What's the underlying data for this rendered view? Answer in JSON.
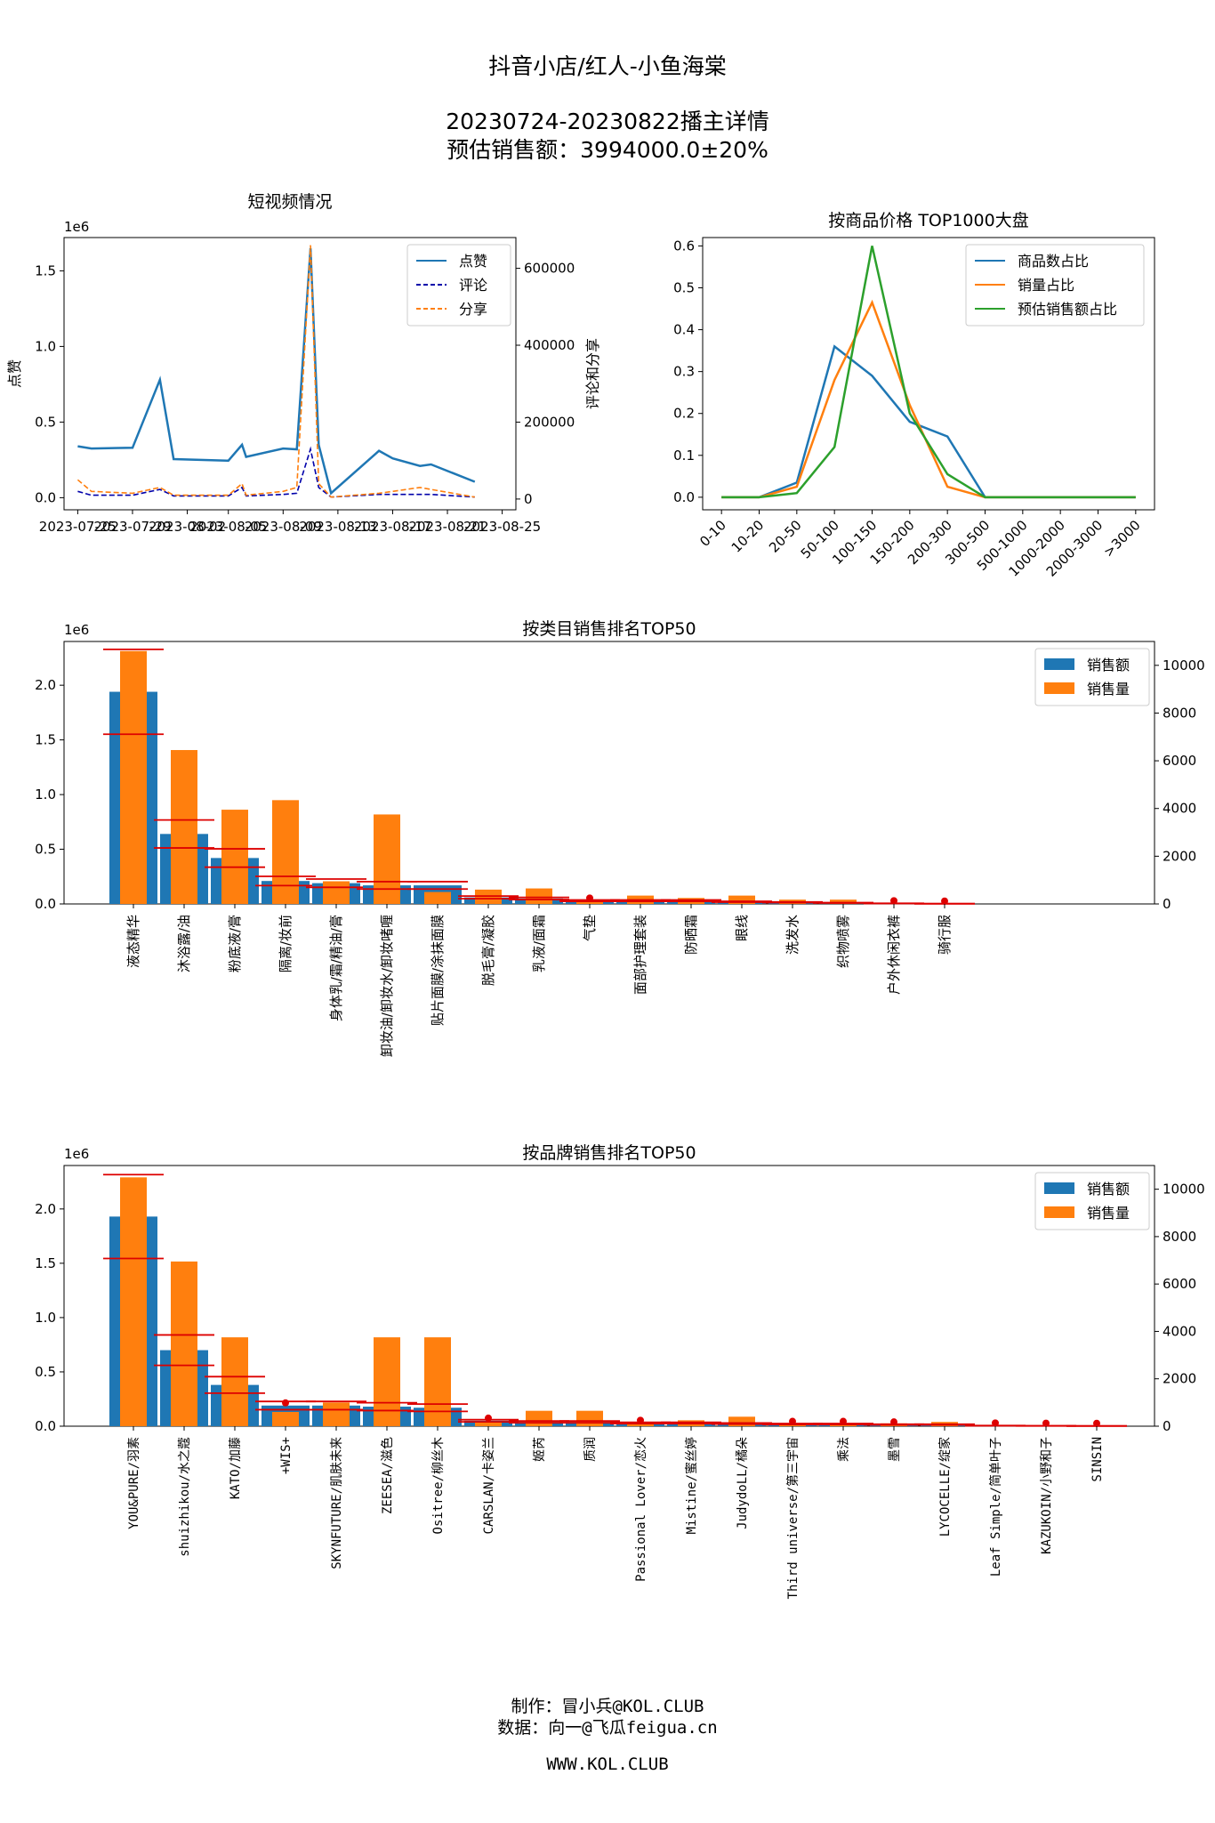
{
  "header": {
    "title": "抖音小店/红人-小鱼海棠",
    "subtitle": "20230724-20230822播主详情",
    "estimate": "预估销售额：3994000.0±20%"
  },
  "footer": {
    "author": "制作：冒小兵@KOL.CLUB",
    "source": "数据：向一@飞瓜feigua.cn",
    "site": "WWW.KOL.CLUB"
  },
  "colors": {
    "blue": "#1f77b4",
    "orange": "#ff7f0e",
    "green": "#2ca02c",
    "navy": "#0000aa",
    "red": "#dd0000"
  },
  "chart_data": [
    {
      "id": "video",
      "type": "line",
      "title": "短视频情况",
      "ylabel": "点赞",
      "y2label": "评论和分享",
      "offset_label": "1e6",
      "x_ticks": [
        "2023-07-25",
        "2023-07-29",
        "2023-08-02",
        "2023-08-05",
        "2023-08-09",
        "2023-08-13",
        "2023-08-17",
        "2023-08-21",
        "2023-08-25"
      ],
      "x_days": [
        1,
        5,
        9,
        12,
        16,
        20,
        24,
        28,
        32
      ],
      "ylim": [
        -80000,
        1720000
      ],
      "yticks": [
        0,
        500000,
        1000000,
        1500000
      ],
      "ytick_labels": [
        "0.0",
        "0.5",
        "1.0",
        "1.5"
      ],
      "y2lim": [
        -28000,
        680000
      ],
      "y2ticks": [
        0,
        200000,
        400000,
        600000
      ],
      "y2tick_labels": [
        "0",
        "200000",
        "400000",
        "600000"
      ],
      "legend": [
        "点赞",
        "评论",
        "分享"
      ],
      "series": [
        {
          "name": "点赞",
          "axis": "left",
          "style": "solid",
          "color": "#1f77b4",
          "x": [
            1,
            2,
            5,
            7,
            8,
            12,
            13,
            13.3,
            16,
            17,
            18,
            18.6,
            19.5,
            23,
            24,
            26,
            26.8,
            30
          ],
          "y": [
            340000,
            325000,
            330000,
            780000,
            255000,
            245000,
            350000,
            270000,
            325000,
            320000,
            1650000,
            350000,
            30000,
            310000,
            260000,
            210000,
            220000,
            105000
          ]
        },
        {
          "name": "评论",
          "axis": "right",
          "style": "dashed",
          "color": "#0000aa",
          "x": [
            1,
            2,
            5,
            7,
            8,
            12,
            13,
            13.3,
            16,
            17,
            18,
            18.6,
            19.5,
            23,
            24,
            26,
            26.8,
            30
          ],
          "y": [
            20000,
            10000,
            10000,
            25000,
            8000,
            8000,
            30000,
            8000,
            12000,
            15000,
            130000,
            30000,
            5000,
            12000,
            12000,
            12000,
            12000,
            5000
          ]
        },
        {
          "name": "分享",
          "axis": "right",
          "style": "dashed",
          "color": "#ff7f0e",
          "x": [
            1,
            2,
            5,
            7,
            8,
            12,
            13,
            13.3,
            16,
            17,
            18,
            18.6,
            19.5,
            23,
            24,
            26,
            26.8,
            30
          ],
          "y": [
            50000,
            20000,
            15000,
            30000,
            10000,
            10000,
            40000,
            10000,
            20000,
            30000,
            660000,
            40000,
            5000,
            15000,
            20000,
            30000,
            25000,
            5000
          ]
        }
      ]
    },
    {
      "id": "price",
      "type": "line",
      "title": "按商品价格 TOP1000大盘",
      "categories": [
        "0-10",
        "10-20",
        "20-50",
        "50-100",
        "100-150",
        "150-200",
        "200-300",
        "300-500",
        "500-1000",
        "1000-2000",
        "2000-3000",
        ">3000"
      ],
      "ylim": [
        -0.03,
        0.62
      ],
      "yticks": [
        0,
        0.1,
        0.2,
        0.3,
        0.4,
        0.5,
        0.6
      ],
      "ytick_labels": [
        "0.0",
        "0.1",
        "0.2",
        "0.3",
        "0.4",
        "0.5",
        "0.6"
      ],
      "legend": [
        "商品数占比",
        "销量占比",
        "预估销售额占比"
      ],
      "series": [
        {
          "name": "商品数占比",
          "color": "#1f77b4",
          "values": [
            0,
            0,
            0.035,
            0.36,
            0.29,
            0.18,
            0.145,
            0,
            0,
            0,
            0,
            0
          ]
        },
        {
          "name": "销量占比",
          "color": "#ff7f0e",
          "values": [
            0,
            0,
            0.025,
            0.28,
            0.465,
            0.22,
            0.025,
            0,
            0,
            0,
            0,
            0
          ]
        },
        {
          "name": "预估销售额占比",
          "color": "#2ca02c",
          "values": [
            0,
            0,
            0.01,
            0.12,
            0.6,
            0.2,
            0.055,
            0,
            0,
            0,
            0,
            0
          ]
        }
      ]
    },
    {
      "id": "category",
      "type": "bar",
      "title": "按类目销售排名TOP50",
      "offset_label": "1e6",
      "legend": [
        "销售额",
        "销售量"
      ],
      "labels": [
        "液态精华",
        "沐浴露/油",
        "粉底液/膏",
        "隔离/妆前",
        "身体乳/霜/精油/膏",
        "卸妆油/卸妆水/卸妆啫喱",
        "贴片面膜/涂抹面膜",
        "脱毛膏/凝胶",
        "乳液/面霜",
        "气垫",
        "面部护理套装",
        "防晒霜",
        "眼线",
        "洗发水",
        "织物喷雾",
        "户外休闲衣裤",
        "骑行服"
      ],
      "sales": [
        1940000,
        640000,
        420000,
        210000,
        190000,
        170000,
        170000,
        60000,
        50000,
        30000,
        30000,
        30000,
        20000,
        15000,
        10000,
        5000,
        2000
      ],
      "qty": [
        10600,
        6450,
        3950,
        4350,
        950,
        3750,
        500,
        600,
        650,
        100,
        350,
        250,
        350,
        180,
        180,
        30,
        20
      ],
      "ylim": [
        0,
        2400000
      ],
      "yticks": [
        0,
        500000,
        1000000,
        1500000,
        2000000
      ],
      "ytick_labels": [
        "0.0",
        "0.5",
        "1.0",
        "1.5",
        "2.0"
      ],
      "y2lim": [
        0,
        11000
      ],
      "y2ticks": [
        0,
        2000,
        4000,
        6000,
        8000,
        10000
      ],
      "y2tick_labels": [
        "0",
        "2000",
        "4000",
        "6000",
        "8000",
        "10000"
      ]
    },
    {
      "id": "brand",
      "type": "bar",
      "title": "按品牌销售排名TOP50",
      "offset_label": "1e6",
      "legend": [
        "销售额",
        "销售量"
      ],
      "labels": [
        "YOU&PURE/羽素",
        "shuizhikou/水之蔻",
        "KATO/加藤",
        "+WIS+",
        "SKYNFUTURE/肌肤未来",
        "ZEESEA/滋色",
        "Ositree/柳丝木",
        "CARSLAN/卡姿兰",
        "姬芮",
        "质润",
        "Passional Lover/恋火",
        "Mistine/蜜丝婷",
        "JudydoLL/橘朵",
        "Third universe/第三宇宙",
        "乘法",
        "墨雪",
        "LYCOCELLE/绽家",
        "Leaf Simple/简单叶子",
        "KAZUKOIN/小野和子",
        "SINSIN"
      ],
      "sales": [
        1930000,
        700000,
        380000,
        190000,
        190000,
        180000,
        170000,
        50000,
        40000,
        40000,
        30000,
        30000,
        25000,
        20000,
        20000,
        15000,
        15000,
        5000,
        3000,
        2000
      ],
      "qty": [
        10500,
        6950,
        3750,
        600,
        1000,
        3750,
        3750,
        150,
        650,
        650,
        150,
        250,
        400,
        120,
        60,
        120,
        180,
        30,
        20,
        20
      ],
      "ylim": [
        0,
        2400000
      ],
      "yticks": [
        0,
        500000,
        1000000,
        1500000,
        2000000
      ],
      "ytick_labels": [
        "0.0",
        "0.5",
        "1.0",
        "1.5",
        "2.0"
      ],
      "y2lim": [
        0,
        11000
      ],
      "y2ticks": [
        0,
        2000,
        4000,
        6000,
        8000,
        10000
      ],
      "y2tick_labels": [
        "0",
        "2000",
        "4000",
        "6000",
        "8000",
        "10000"
      ]
    }
  ]
}
